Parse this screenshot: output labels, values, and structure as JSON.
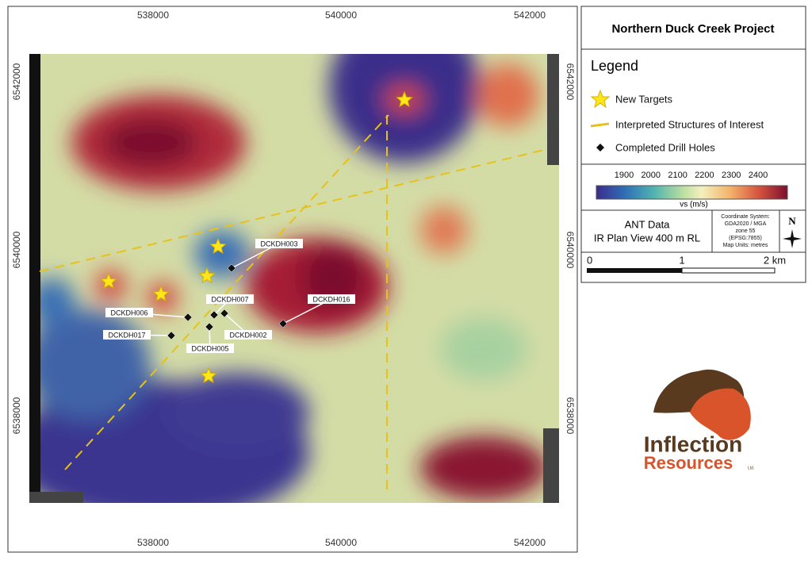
{
  "map": {
    "x_ticks": [
      538000,
      540000,
      542000
    ],
    "y_ticks": [
      6542000,
      6540000,
      6538000
    ],
    "drill_holes": [
      "DCKDH003",
      "DCKDH006",
      "DCKDH007",
      "DCKDH017",
      "DCKDH002",
      "DCKDH005",
      "DCKDH016"
    ]
  },
  "panel": {
    "title": "Northern Duck Creek Project",
    "legend": {
      "heading": "Legend",
      "items": [
        "New Targets",
        "Interpreted Structures of Interest",
        "Completed Drill Holes"
      ]
    },
    "colorbar": {
      "ticks": [
        1900,
        2000,
        2100,
        2200,
        2300,
        2400
      ],
      "label": "vs (m/s)"
    },
    "info": [
      "ANT Data",
      "IR Plan View 400 m RL"
    ],
    "crs": [
      "Coordinate System:",
      "GDA2020 / MGA",
      "zone 55",
      "(EPSG:7855)",
      "Map Units: metres"
    ],
    "north": "N",
    "scale": [
      "0",
      "1",
      "2 km"
    ],
    "logo": {
      "name": "Inflection",
      "sub": "Resources",
      "suffix": "Ltd."
    }
  }
}
